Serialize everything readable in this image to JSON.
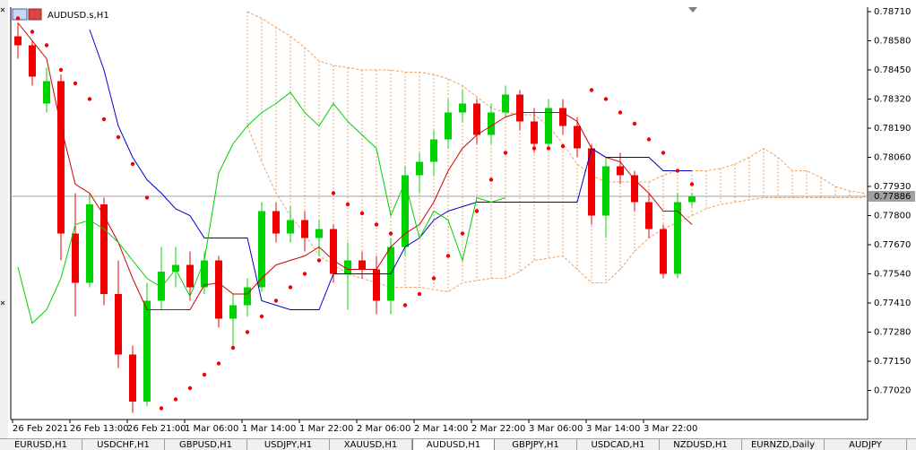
{
  "chart_data": {
    "type": "candlestick",
    "title": "AUDUSD.s,H1",
    "categories": [
      "26 Feb 2021",
      null,
      null,
      null,
      "26 Feb 13:00",
      null,
      null,
      null,
      "26 Feb 21:00",
      null,
      null,
      null,
      "1 Mar 06:00",
      null,
      null,
      null,
      "1 Mar 14:00",
      null,
      null,
      null,
      "1 Mar 22:00",
      null,
      null,
      null,
      "2 Mar 06:00",
      null,
      null,
      null,
      "2 Mar 14:00",
      null,
      null,
      null,
      "2 Mar 22:00",
      null,
      null,
      null,
      "3 Mar 06:00",
      null,
      null,
      null,
      "3 Mar 14:00",
      null,
      null,
      null,
      "3 Mar 22:00",
      null,
      null,
      null,
      null,
      null,
      null,
      null,
      null,
      null,
      null,
      null,
      null,
      null,
      null,
      null
    ],
    "candles": [
      [
        0.786,
        0.7866,
        0.785,
        0.7856
      ],
      [
        0.7856,
        0.7858,
        0.7838,
        0.7842
      ],
      [
        0.783,
        0.7846,
        0.7826,
        0.784
      ],
      [
        0.784,
        0.7843,
        0.776,
        0.7772
      ],
      [
        0.7772,
        0.779,
        0.7735,
        0.775
      ],
      [
        0.775,
        0.779,
        0.7748,
        0.7785
      ],
      [
        0.7785,
        0.7788,
        0.774,
        0.7745
      ],
      [
        0.7745,
        0.776,
        0.7712,
        0.7718
      ],
      [
        0.7718,
        0.7722,
        0.7692,
        0.7697
      ],
      [
        0.7697,
        0.775,
        0.7695,
        0.7742
      ],
      [
        0.7742,
        0.7766,
        0.7738,
        0.7755
      ],
      [
        0.7755,
        0.7766,
        0.7748,
        0.7758
      ],
      [
        0.7758,
        0.7764,
        0.7742,
        0.7748
      ],
      [
        0.7748,
        0.7764,
        0.7745,
        0.776
      ],
      [
        0.776,
        0.7762,
        0.773,
        0.7734
      ],
      [
        0.7734,
        0.7745,
        0.7722,
        0.774
      ],
      [
        0.774,
        0.7752,
        0.7735,
        0.7748
      ],
      [
        0.7748,
        0.7786,
        0.7746,
        0.7782
      ],
      [
        0.7782,
        0.7786,
        0.7768,
        0.7772
      ],
      [
        0.7772,
        0.7784,
        0.7768,
        0.7778
      ],
      [
        0.7778,
        0.7782,
        0.7764,
        0.777
      ],
      [
        0.777,
        0.7778,
        0.7762,
        0.7774
      ],
      [
        0.7774,
        0.7776,
        0.775,
        0.7754
      ],
      [
        0.7754,
        0.7768,
        0.7738,
        0.776
      ],
      [
        0.776,
        0.7764,
        0.7752,
        0.7756
      ],
      [
        0.7756,
        0.7762,
        0.7736,
        0.7742
      ],
      [
        0.7742,
        0.777,
        0.7736,
        0.7766
      ],
      [
        0.7766,
        0.7802,
        0.7762,
        0.7798
      ],
      [
        0.7798,
        0.7808,
        0.779,
        0.7804
      ],
      [
        0.7804,
        0.7818,
        0.7798,
        0.7814
      ],
      [
        0.7814,
        0.7832,
        0.781,
        0.7826
      ],
      [
        0.7826,
        0.7836,
        0.7822,
        0.783
      ],
      [
        0.783,
        0.7832,
        0.7812,
        0.7816
      ],
      [
        0.7816,
        0.783,
        0.7812,
        0.7826
      ],
      [
        0.7826,
        0.7838,
        0.7824,
        0.7834
      ],
      [
        0.7834,
        0.7836,
        0.7818,
        0.7822
      ],
      [
        0.7822,
        0.7828,
        0.7808,
        0.7812
      ],
      [
        0.7812,
        0.7832,
        0.781,
        0.7828
      ],
      [
        0.7828,
        0.7832,
        0.7816,
        0.782
      ],
      [
        0.782,
        0.7824,
        0.7806,
        0.781
      ],
      [
        0.781,
        0.7812,
        0.7776,
        0.778
      ],
      [
        0.778,
        0.7806,
        0.777,
        0.7802
      ],
      [
        0.7802,
        0.7808,
        0.7794,
        0.7798
      ],
      [
        0.7798,
        0.78,
        0.7782,
        0.7786
      ],
      [
        0.7786,
        0.779,
        0.777,
        0.7774
      ],
      [
        0.7774,
        0.7776,
        0.7752,
        0.7754
      ],
      [
        0.7754,
        0.779,
        0.7752,
        0.7786
      ],
      [
        0.7786,
        0.779,
        0.7784,
        0.77886
      ]
    ],
    "up_color": "#00d400",
    "down_color": "#f00000",
    "lines": [
      {
        "color": "#d00000",
        "values": [
          0.7866,
          0.7858,
          0.785,
          0.782,
          0.7794,
          0.779,
          0.778,
          0.7768,
          0.7752,
          0.7738,
          0.7738,
          0.7738,
          0.7738,
          0.7749,
          0.775,
          0.7745,
          0.7745,
          0.7752,
          0.7758,
          0.776,
          0.7762,
          0.7766,
          0.776,
          0.7756,
          0.7756,
          0.7756,
          0.7766,
          0.7772,
          0.7776,
          0.7786,
          0.78,
          0.781,
          0.7816,
          0.782,
          0.7824,
          0.7826,
          0.7826,
          0.7826,
          0.7826,
          0.7822,
          0.781,
          0.7806,
          0.7804,
          0.7796,
          0.779,
          0.7782,
          0.7782,
          0.7776
        ]
      },
      {
        "color": "#0000c8",
        "values": [
          null,
          null,
          null,
          null,
          null,
          0.7863,
          0.7845,
          0.782,
          0.7806,
          0.7796,
          0.779,
          0.7783,
          0.778,
          0.777,
          0.777,
          0.777,
          0.777,
          0.7742,
          0.774,
          0.7738,
          0.7738,
          0.7738,
          0.7754,
          0.7754,
          0.7754,
          0.7754,
          0.7754,
          0.7766,
          0.777,
          0.7778,
          0.7782,
          0.7784,
          0.7786,
          0.7786,
          0.7786,
          0.7786,
          0.7786,
          0.7786,
          0.7786,
          0.7786,
          0.781,
          0.7806,
          0.7806,
          0.7806,
          0.7806,
          0.78,
          0.78,
          0.78
        ]
      },
      {
        "color": "#00d000",
        "values": [
          0.7757,
          0.7732,
          0.7738,
          0.7752,
          0.7776,
          0.7778,
          0.7774,
          0.7768,
          0.776,
          0.7752,
          0.7748,
          0.7756,
          0.7744,
          0.776,
          0.7799,
          0.7812,
          0.782,
          0.7826,
          0.783,
          0.7835,
          0.7826,
          0.782,
          0.783,
          0.7822,
          0.7816,
          0.781,
          0.778,
          0.7795,
          0.777,
          0.7782,
          0.7778,
          0.776,
          0.7788,
          0.7786,
          0.7788,
          null,
          null,
          null,
          null,
          null,
          null,
          null,
          null,
          null,
          null,
          null,
          null,
          null
        ]
      }
    ],
    "sar": {
      "color": "#f00000",
      "values": [
        0.7868,
        0.7862,
        0.7856,
        0.7845,
        0.7839,
        0.7832,
        0.7823,
        0.7815,
        0.7803,
        0.7788,
        0.7694,
        0.7698,
        0.7703,
        0.7709,
        0.7714,
        0.7721,
        0.7728,
        0.7735,
        0.7742,
        0.7748,
        0.7754,
        0.776,
        0.779,
        0.7785,
        0.7781,
        0.7776,
        0.7772,
        0.774,
        0.7745,
        0.7752,
        0.7762,
        0.7772,
        0.7782,
        0.7796,
        0.7808,
        0.783,
        0.781,
        0.781,
        0.7811,
        0.7812,
        0.7836,
        0.7832,
        0.7826,
        0.7821,
        0.7814,
        0.7808,
        0.78,
        0.7794
      ]
    },
    "cloud": {
      "color": "#f0a060",
      "span_a": [
        null,
        null,
        null,
        null,
        null,
        null,
        null,
        null,
        null,
        null,
        null,
        null,
        null,
        null,
        null,
        null,
        0.7871,
        0.7868,
        0.7864,
        0.786,
        0.7855,
        0.7849,
        0.7847,
        0.7846,
        0.7845,
        0.7845,
        0.7845,
        0.7844,
        0.7844,
        0.7843,
        0.7841,
        0.7838,
        0.7833,
        0.7828,
        0.7826,
        0.7825,
        0.7825,
        0.782,
        0.7812,
        0.7803,
        0.7798,
        0.7795,
        0.7795,
        0.7795,
        0.7795,
        0.7798,
        0.78,
        0.78,
        0.78,
        0.7801,
        0.7803,
        0.7806,
        0.781,
        0.7806,
        0.78,
        0.78,
        0.7797,
        0.7793,
        0.7791,
        0.779
      ],
      "span_b": [
        null,
        null,
        null,
        null,
        null,
        null,
        null,
        null,
        null,
        null,
        null,
        null,
        null,
        null,
        null,
        null,
        0.782,
        0.7804,
        0.779,
        0.778,
        0.7772,
        0.7762,
        0.7758,
        0.7754,
        0.7752,
        0.775,
        0.7748,
        0.7748,
        0.7748,
        0.7747,
        0.7746,
        0.775,
        0.7751,
        0.7752,
        0.7752,
        0.7755,
        0.776,
        0.7761,
        0.7762,
        0.7756,
        0.775,
        0.775,
        0.7756,
        0.7764,
        0.777,
        0.7774,
        0.7777,
        0.778,
        0.7783,
        0.7785,
        0.7786,
        0.7787,
        0.7788,
        0.7788,
        0.7788,
        0.7788,
        0.7788,
        0.7788,
        0.7788,
        0.7788
      ]
    },
    "current_price": 0.77886,
    "ylim": [
      0.7689,
      0.7873
    ],
    "yticks": [
      {
        "value": 0.7871,
        "label": "0.78710"
      },
      {
        "value": 0.7858,
        "label": "0.78580"
      },
      {
        "value": 0.7845,
        "label": "0.78450"
      },
      {
        "value": 0.7832,
        "label": "0.78320"
      },
      {
        "value": 0.7819,
        "label": "0.78190"
      },
      {
        "value": 0.7806,
        "label": "0.78060"
      },
      {
        "value": 0.7793,
        "label": "0.77930"
      },
      {
        "value": 0.778,
        "label": "0.77800"
      },
      {
        "value": 0.7767,
        "label": "0.77670"
      },
      {
        "value": 0.7754,
        "label": "0.77540"
      },
      {
        "value": 0.7741,
        "label": "0.77410"
      },
      {
        "value": 0.7728,
        "label": "0.77280"
      },
      {
        "value": 0.7715,
        "label": "0.77150"
      },
      {
        "value": 0.7702,
        "label": "0.77020"
      }
    ],
    "grid": false
  },
  "tabs": [
    "EURUSD,H1",
    "USDCHF,H1",
    "GBPUSD,H1",
    "USDJPY,H1",
    "XAUUSD,H1",
    "AUDUSD,H1",
    "GBPJPY,H1",
    "USDCAD,H1",
    "NZDUSD,H1",
    "EURNZD,Daily",
    "AUDJPY"
  ],
  "active_tab": 5
}
